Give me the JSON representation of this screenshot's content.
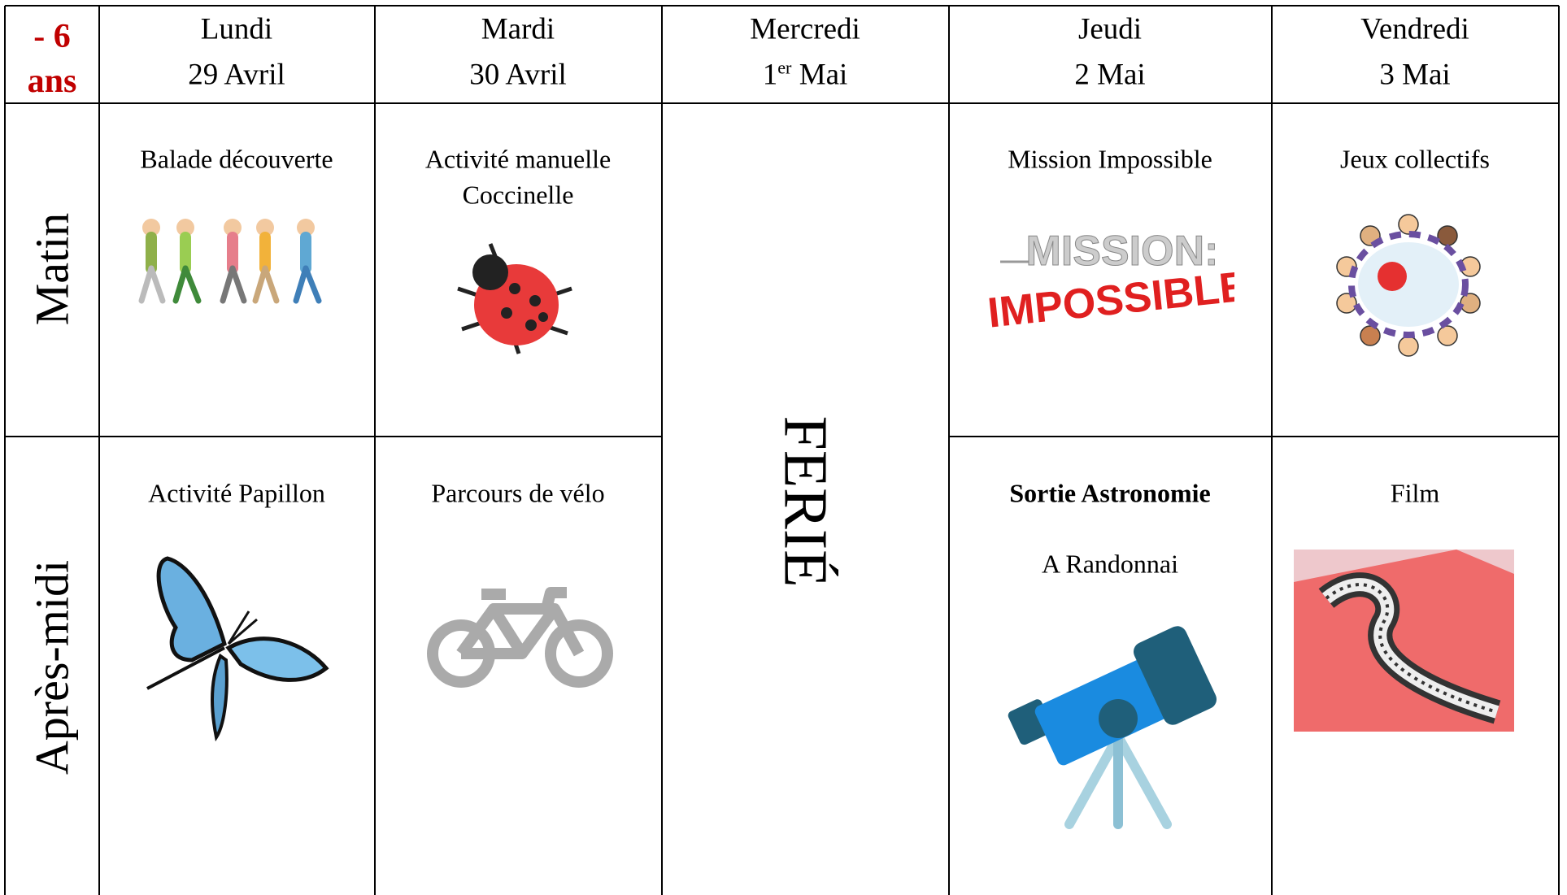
{
  "corner": {
    "line1": "- 6",
    "line2": "ans"
  },
  "days": [
    {
      "name": "Lundi",
      "date": "29 Avril"
    },
    {
      "name": "Mardi",
      "date": "30 Avril"
    },
    {
      "name": "Mercredi",
      "date_number": "1",
      "date_suffix": "er",
      "date_month": "Mai"
    },
    {
      "name": "Jeudi",
      "date": "2 Mai"
    },
    {
      "name": "Vendredi",
      "date": "3 Mai"
    }
  ],
  "periods": [
    "Matin",
    "Après-midi"
  ],
  "holiday": "FERIÉ",
  "morning": {
    "lundi": "Balade découverte",
    "mardi": [
      "Activité manuelle",
      "Coccinelle"
    ],
    "jeudi": "Mission Impossible",
    "vendredi": "Jeux collectifs"
  },
  "mission_logo": {
    "line1": "MISSION:",
    "line2": "IMPOSSIBLE"
  },
  "afternoon": {
    "lundi": "Activité Papillon",
    "mardi": "Parcours de vélo",
    "jeudi": {
      "title": "Sortie Astronomie",
      "place": "A Randonnai"
    },
    "vendredi": "Film"
  }
}
